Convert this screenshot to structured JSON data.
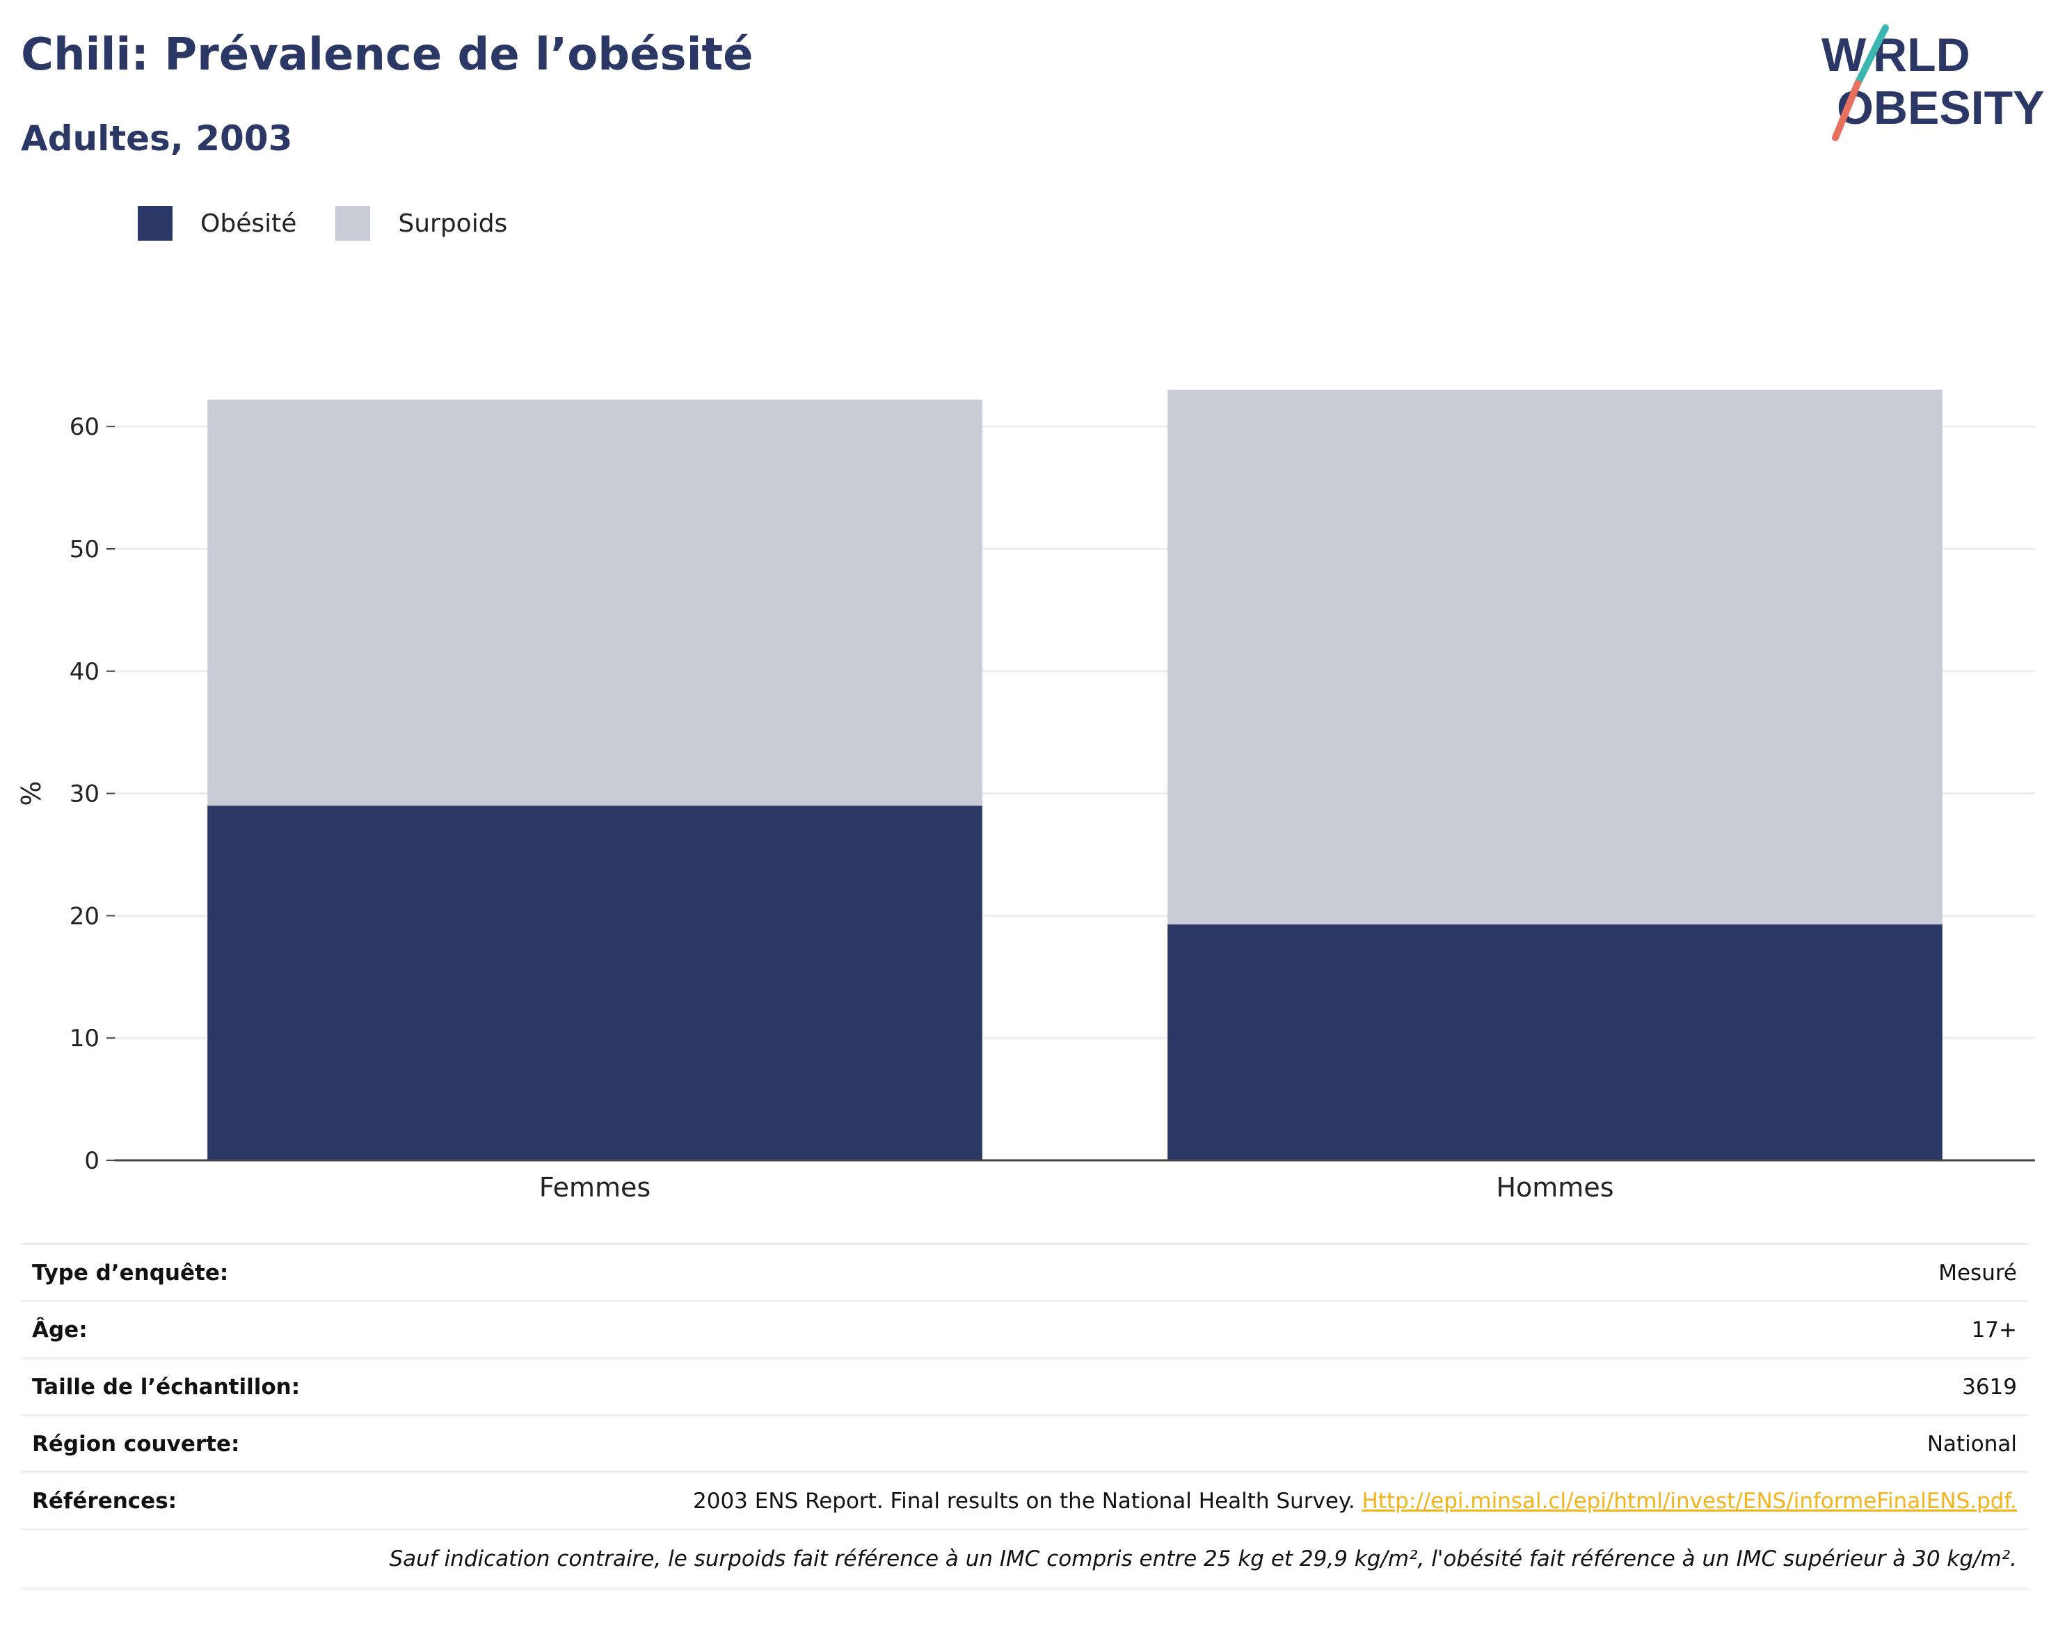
{
  "header": {
    "title": "Chili: Prévalence de l’obésité",
    "subtitle": "Adultes, 2003"
  },
  "logo": {
    "line1": "WORLD",
    "line2": "OBESITY"
  },
  "legend": [
    {
      "label": "Obésité",
      "color": "#2b3765"
    },
    {
      "label": "Surpoids",
      "color": "#c9cbd6"
    }
  ],
  "chart_data": {
    "type": "bar",
    "stacked": true,
    "categories": [
      "Femmes",
      "Hommes"
    ],
    "series": [
      {
        "name": "Obésité",
        "color": "#2b3765",
        "values": [
          29.0,
          19.3
        ]
      },
      {
        "name": "Surpoids",
        "color": "#c9cbd6",
        "values": [
          33.2,
          43.7
        ]
      }
    ],
    "ylabel": "%",
    "ylim": [
      0,
      65
    ],
    "yticks": [
      0,
      10,
      20,
      30,
      40,
      50,
      60
    ],
    "grid": true,
    "legend_position": "top-left"
  },
  "info": {
    "rows": [
      {
        "label": "Type d’enquête:",
        "value": "Mesuré"
      },
      {
        "label": "Âge:",
        "value": "17+"
      },
      {
        "label": "Taille de l’échantillon:",
        "value": "3619"
      },
      {
        "label": "Région couverte:",
        "value": "National"
      }
    ],
    "references_label": "Références:",
    "references_text": "2003 ENS Report. Final results on the National Health Survey. ",
    "references_link": "Http://epi.minsal.cl/epi/html/invest/ENS/informeFinalENS.pdf.",
    "note": "Sauf indication contraire, le surpoids fait référence à un IMC compris entre 25 kg et 29,9 kg/m², l'obésité fait référence à un IMC supérieur à 30 kg/m²."
  }
}
